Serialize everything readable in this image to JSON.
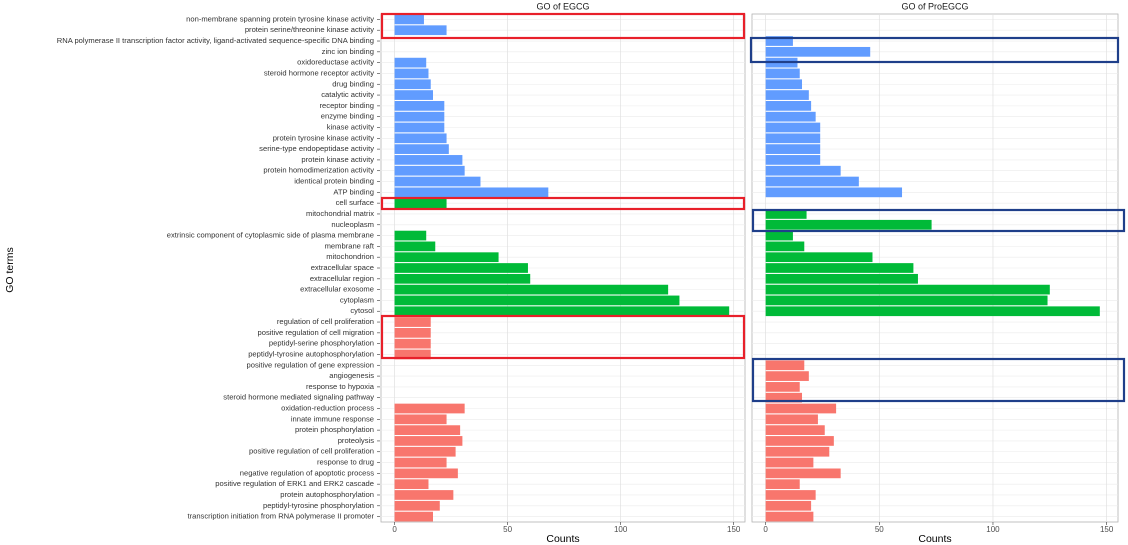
{
  "chart_data": {
    "type": "bar",
    "orientation": "horizontal",
    "x_label": "Counts",
    "y_label": "GO terms",
    "categories": [
      "non-membrane spanning protein tyrosine kinase activity",
      "protein serine/threonine kinase activity",
      "RNA polymerase II transcription factor activity, ligand-activated sequence-specific DNA binding",
      "zinc ion binding",
      "oxidoreductase activity",
      "steroid hormone receptor activity",
      "drug binding",
      "catalytic activity",
      "receptor binding",
      "enzyme binding",
      "kinase activity",
      "protein tyrosine kinase activity",
      "serine-type endopeptidase activity",
      "protein kinase activity",
      "protein homodimerization activity",
      "identical protein binding",
      "ATP binding",
      "cell surface",
      "mitochondrial matrix",
      "nucleoplasm",
      "extrinsic component of cytoplasmic side of plasma membrane",
      "membrane raft",
      "mitochondrion",
      "extracellular space",
      "extracellular region",
      "extracellular exosome",
      "cytoplasm",
      "cytosol",
      "regulation of cell proliferation",
      "positive regulation of cell migration",
      "peptidyl-serine phosphorylation",
      "peptidyl-tyrosine autophosphorylation",
      "positive regulation of gene expression",
      "angiogenesis",
      "response to hypoxia",
      "steroid hormone mediated signaling pathway",
      "oxidation-reduction process",
      "innate immune response",
      "protein phosphorylation",
      "proteolysis",
      "positive regulation of cell proliferation",
      "response to drug",
      "negative regulation of apoptotic process",
      "positive regulation of ERK1 and ERK2 cascade",
      "protein autophosphorylation",
      "peptidyl-tyrosine phosphorylation",
      "transcription initiation from RNA polymerase II promoter"
    ],
    "category_colors": [
      "#619CFF",
      "#619CFF",
      "#619CFF",
      "#619CFF",
      "#619CFF",
      "#619CFF",
      "#619CFF",
      "#619CFF",
      "#619CFF",
      "#619CFF",
      "#619CFF",
      "#619CFF",
      "#619CFF",
      "#619CFF",
      "#619CFF",
      "#619CFF",
      "#619CFF",
      "#00BA38",
      "#00BA38",
      "#00BA38",
      "#00BA38",
      "#00BA38",
      "#00BA38",
      "#00BA38",
      "#00BA38",
      "#00BA38",
      "#00BA38",
      "#00BA38",
      "#F8766D",
      "#F8766D",
      "#F8766D",
      "#F8766D",
      "#F8766D",
      "#F8766D",
      "#F8766D",
      "#F8766D",
      "#F8766D",
      "#F8766D",
      "#F8766D",
      "#F8766D",
      "#F8766D",
      "#F8766D",
      "#F8766D",
      "#F8766D",
      "#F8766D",
      "#F8766D",
      "#F8766D"
    ],
    "panels": [
      {
        "title": "GO of EGCG",
        "values": [
          13,
          23,
          null,
          null,
          14,
          15,
          16,
          17,
          22,
          22,
          22,
          23,
          24,
          30,
          31,
          38,
          68,
          23,
          null,
          null,
          14,
          18,
          46,
          59,
          60,
          121,
          126,
          148,
          16,
          16,
          16,
          16,
          null,
          null,
          null,
          null,
          31,
          23,
          29,
          30,
          27,
          23,
          28,
          15,
          26,
          20,
          17
        ]
      },
      {
        "title": "GO of ProEGCG",
        "values": [
          null,
          null,
          12,
          46,
          14,
          15,
          16,
          19,
          20,
          22,
          24,
          24,
          24,
          24,
          33,
          41,
          60,
          null,
          18,
          73,
          12,
          17,
          47,
          65,
          67,
          125,
          124,
          147,
          null,
          null,
          null,
          null,
          17,
          19,
          15,
          16,
          31,
          23,
          26,
          30,
          28,
          21,
          33,
          15,
          22,
          20,
          21
        ]
      }
    ],
    "xlim": [
      -6,
      155
    ],
    "xticks": [
      0,
      50,
      100,
      150
    ],
    "grid": true
  }
}
